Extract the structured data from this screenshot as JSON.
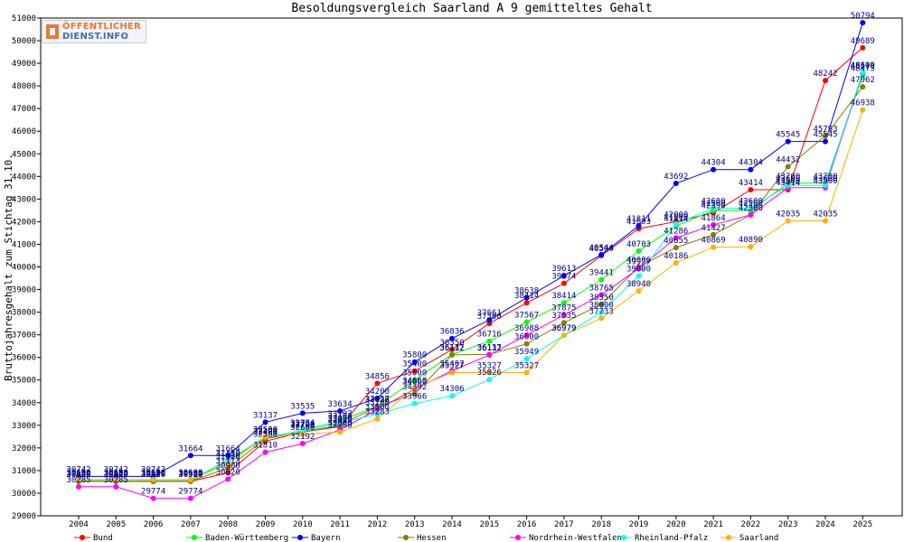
{
  "logo": {
    "line1": "ÖFFENTLICHER",
    "line2": "DIENST.INFO"
  },
  "chart_data": {
    "type": "line",
    "title": "Besoldungsvergleich Saarland A 9 gemitteltes Gehalt",
    "ylabel": "Bruttojahresgehalt zum Stichtag 31.10.",
    "xlabel": "",
    "ylim": [
      29000,
      51000
    ],
    "yticks": [
      29000,
      30000,
      31000,
      32000,
      33000,
      34000,
      35000,
      36000,
      37000,
      38000,
      39000,
      40000,
      41000,
      42000,
      43000,
      44000,
      45000,
      46000,
      47000,
      48000,
      49000,
      50000,
      51000
    ],
    "categories": [
      "2004",
      "2005",
      "2006",
      "2007",
      "2008",
      "2009",
      "2010",
      "2011",
      "2012",
      "2013",
      "2014",
      "2015",
      "2016",
      "2017",
      "2018",
      "2019",
      "2020",
      "2021",
      "2022",
      "2023",
      "2024",
      "2025"
    ],
    "grid": false,
    "legend_position": "bottom",
    "series": [
      {
        "name": "Bund",
        "color": "#ff0000",
        "values": [
          30520,
          30520,
          30520,
          30520,
          30900,
          32300,
          32700,
          32950,
          34856,
          35400,
          36350,
          37500,
          38414,
          39274,
          40500,
          41693,
          42000,
          42390,
          43414,
          43414,
          48242,
          49689
        ]
      },
      {
        "name": "Baden-Württemberg",
        "color": "#00ff00",
        "values": [
          30540,
          30540,
          30540,
          30540,
          31430,
          32421,
          32784,
          33197,
          33857,
          35000,
          36137,
          36716,
          37567,
          38414,
          39441,
          40703,
          41814,
          42500,
          42500,
          43700,
          43700,
          48473
        ]
      },
      {
        "name": "Bayern",
        "color": "#0000ff",
        "values": [
          30742,
          30742,
          30742,
          31664,
          31664,
          33137,
          33535,
          33634,
          34200,
          35800,
          36836,
          37661,
          38638,
          39613,
          40544,
          41811,
          43692,
          44304,
          44304,
          45545,
          45545,
          50794
        ]
      },
      {
        "name": "Hessen",
        "color": "#808000",
        "values": [
          30530,
          30530,
          30530,
          30530,
          31113,
          32400,
          32700,
          33000,
          33826,
          34392,
          36112,
          36137,
          36600,
          37535,
          38350,
          40006,
          40855,
          41427,
          42300,
          44432,
          45793,
          47962
        ]
      },
      {
        "name": "Nordrhein-Westfalen",
        "color": "#ff00ff",
        "values": [
          30285,
          30285,
          29774,
          29774,
          30620,
          31810,
          32192,
          32800,
          33700,
          34600,
          35407,
          36112,
          36988,
          37875,
          38765,
          39927,
          41286,
          41864,
          42300,
          43500,
          43500,
          48570
        ]
      },
      {
        "name": "Rheinland-Pfalz",
        "color": "#00ffff",
        "values": [
          30600,
          30600,
          30600,
          30600,
          31450,
          32500,
          32750,
          33100,
          33500,
          33966,
          34306,
          35026,
          35949,
          36979,
          38000,
          39600,
          41900,
          42600,
          42600,
          43600,
          43600,
          48600
        ]
      },
      {
        "name": "Saarland",
        "color": "#ffb000",
        "values": [
          30600,
          30600,
          30600,
          30600,
          31300,
          32500,
          32600,
          32700,
          33283,
          34668,
          35327,
          35327,
          35327,
          36979,
          37733,
          38940,
          40186,
          40869,
          40890,
          42035,
          42035,
          46938
        ]
      }
    ],
    "data_labels": [
      {
        "series": 2,
        "labels": [
          "30742",
          "30742",
          "30742",
          "31664",
          "31664",
          "33137",
          "33535",
          "33634",
          "34200",
          "35800",
          "36836",
          "37661",
          "38638",
          "39613",
          "40544",
          "41811",
          "43692",
          "44304",
          "44304",
          "45545",
          "45545",
          "50794"
        ]
      },
      {
        "series": 0,
        "labels": [
          "30520",
          "30520",
          "30520",
          "30520",
          "30900",
          "32300",
          "32700",
          "32950",
          "34856",
          "35400",
          "36350",
          "37500",
          "38414",
          "39274",
          "40500",
          "41693",
          "42000",
          "42390",
          "43414",
          "43414",
          "48242",
          "49689"
        ]
      },
      {
        "series": 1,
        "labels": [
          "30540",
          "30540",
          "30540",
          "30540",
          "31430",
          "32421",
          "32784",
          "33197",
          "33857",
          "35000",
          "36137",
          "36716",
          "37567",
          "38414",
          "39441",
          "40703",
          "41814",
          "42500",
          "42500",
          "43700",
          "43700",
          "48473"
        ]
      },
      {
        "series": 3,
        "labels": [
          "30530",
          "30530",
          "30530",
          "30530",
          "31113",
          "32400",
          "32700",
          "33000",
          "33826",
          "34392",
          "36112",
          "36137",
          "36600",
          "37535",
          "38350",
          "40006",
          "40855",
          "41427",
          "42300",
          "44432",
          "45793",
          "47962"
        ]
      },
      {
        "series": 4,
        "labels": [
          "30285",
          "30285",
          "29774",
          "29774",
          "30620",
          "31810",
          "32192",
          "32800",
          "33700",
          "34600",
          "35407",
          "36112",
          "36988",
          "37875",
          "38765",
          "39927",
          "41286",
          "41864",
          "42300",
          "43500",
          "43500",
          "48570"
        ]
      },
      {
        "series": 5,
        "labels": [
          "30600",
          "30600",
          "30600",
          "30600",
          "31450",
          "32500",
          "32750",
          "33100",
          "33500",
          "33966",
          "34306",
          "35026",
          "35949",
          "36979",
          "38000",
          "39600",
          "41900",
          "42600",
          "42600",
          "43600",
          "43600",
          "48600"
        ]
      },
      {
        "series": 6,
        "labels": [
          "30600",
          "30600",
          "30600",
          "30600",
          "31300",
          "32500",
          "32600",
          "32700",
          "33283",
          "34668",
          "35327",
          "35327",
          "35327",
          "36979",
          "37733",
          "38940",
          "40186",
          "40869",
          "40890",
          "42035",
          "42035",
          "46938"
        ]
      }
    ]
  }
}
